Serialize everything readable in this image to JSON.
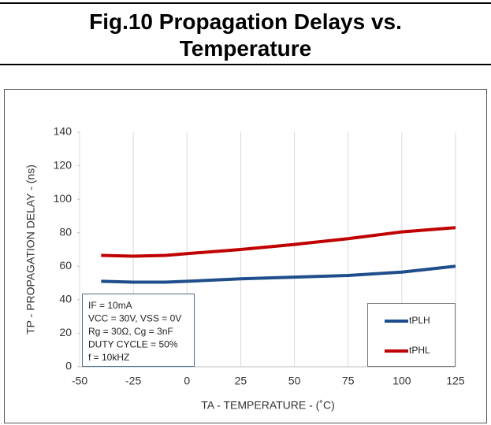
{
  "chart_data": {
    "type": "line",
    "title": "Fig.10 Propagation Delays vs. Temperature",
    "x_label": "TA - TEMPERATURE - (˚C)",
    "y_label": "TP - PROPAGATION DELAY - (ns)",
    "x": [
      -40,
      -25,
      -10,
      0,
      25,
      50,
      75,
      100,
      125
    ],
    "series": [
      {
        "name": "tPLH",
        "color": "#1f4e8c",
        "values": [
          51,
          50.5,
          50.5,
          51,
          52.5,
          53.5,
          54.5,
          56.5,
          60
        ]
      },
      {
        "name": "tPHL",
        "color": "#c00000",
        "values": [
          66.5,
          66,
          66.5,
          67.5,
          70,
          73,
          76.5,
          80.5,
          83
        ]
      }
    ],
    "annotations": [
      "IF = 10mA",
      "VCC = 30V, VSS = 0V",
      "Rg = 30Ω, Cg = 3nF",
      "DUTY CYCLE = 50%",
      "f = 10kHZ"
    ],
    "xlim": [
      -50,
      125
    ],
    "xticks": [
      -50,
      -25,
      0,
      25,
      50,
      75,
      100,
      125
    ],
    "ylim": [
      0,
      140
    ],
    "yticks": [
      0,
      20,
      40,
      60,
      80,
      100,
      120,
      140
    ],
    "grid": "x",
    "legend": "lower right"
  }
}
